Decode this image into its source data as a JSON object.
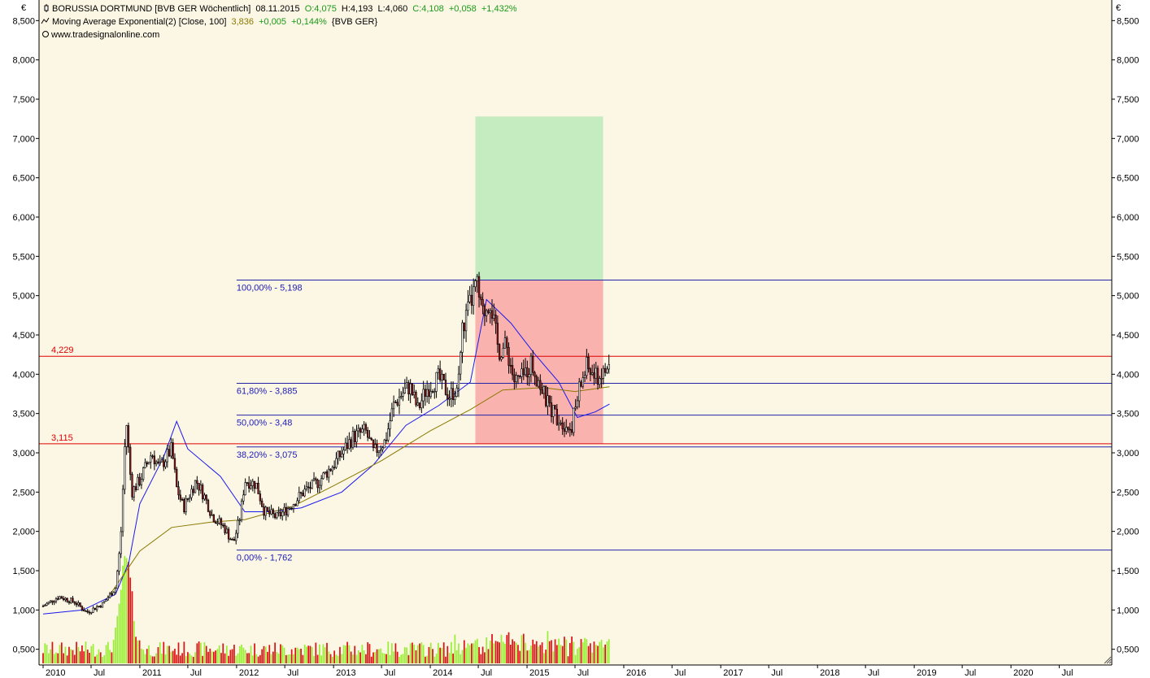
{
  "currency_symbol": "€",
  "legend": {
    "instrument_name": "BORUSSIA DORTMUND [BVB GER  Wöchentlich]",
    "instrument_date": "08.11.2015",
    "ohlc_open": "O:4,075",
    "ohlc_high": "H:4,193",
    "ohlc_low": "L:4,060",
    "ohlc_close": "C:4,108",
    "ohlc_change": "+0,058",
    "ohlc_change_pct": "+1,432%",
    "ma_name": "Moving Average Exponential(2) [Close, 100]",
    "ma_value": "3,836",
    "ma_change": "+0,005",
    "ma_change_pct": "+0,144%",
    "ma_source": "{BVB GER}",
    "website": "www.tradesignalonline.com"
  },
  "colors": {
    "background": "#ffffff",
    "plot_background": "#fcf6e4",
    "candle_up": "#ffffff",
    "candle_down": "#9b1c1c",
    "volume_up": "#99ee33",
    "volume_down": "#dd1111",
    "fib_line": "#2424a8",
    "horizontal_line": "#e00000",
    "channel_line": "#1a1aee",
    "ma_line": "#8a7a00",
    "target_box": "#c5ebc0",
    "loss_box": "#f9b2ae"
  },
  "chart_data": {
    "type": "candlestick",
    "ylim": [
      0.3,
      8.7
    ],
    "yticks": [
      0.5,
      1.0,
      1.5,
      2.0,
      2.5,
      3.0,
      3.5,
      4.0,
      4.5,
      5.0,
      5.5,
      6.0,
      6.5,
      7.0,
      7.5,
      8.0,
      8.5
    ],
    "ytick_labels": [
      "0,500",
      "1,000",
      "1,500",
      "2,000",
      "2,500",
      "3,000",
      "3,500",
      "4,000",
      "4,500",
      "5,000",
      "5,500",
      "6,000",
      "6,500",
      "7,000",
      "7,500",
      "8,000",
      "8,500"
    ],
    "xlim": [
      "2010-01-01",
      "2020-12-31"
    ],
    "xtick_labels": [
      {
        "date": "2010-01-01",
        "label": "2010"
      },
      {
        "date": "2010-07-01",
        "label": "Jul"
      },
      {
        "date": "2011-01-01",
        "label": "2011"
      },
      {
        "date": "2011-07-01",
        "label": "Jul"
      },
      {
        "date": "2012-01-01",
        "label": "2012"
      },
      {
        "date": "2012-07-01",
        "label": "Jul"
      },
      {
        "date": "2013-01-01",
        "label": "2013"
      },
      {
        "date": "2013-07-01",
        "label": "Jul"
      },
      {
        "date": "2014-01-01",
        "label": "2014"
      },
      {
        "date": "2014-07-01",
        "label": "Jul"
      },
      {
        "date": "2015-01-01",
        "label": "2015"
      },
      {
        "date": "2015-07-01",
        "label": "Jul"
      },
      {
        "date": "2016-01-01",
        "label": "2016"
      },
      {
        "date": "2016-07-01",
        "label": "Jul"
      },
      {
        "date": "2017-01-01",
        "label": "2017"
      },
      {
        "date": "2017-07-01",
        "label": "Jul"
      },
      {
        "date": "2018-01-01",
        "label": "2018"
      },
      {
        "date": "2018-07-01",
        "label": "Jul"
      },
      {
        "date": "2019-01-01",
        "label": "2019"
      },
      {
        "date": "2019-07-01",
        "label": "Jul"
      },
      {
        "date": "2020-01-01",
        "label": "2020"
      },
      {
        "date": "2020-07-01",
        "label": "Jul"
      }
    ],
    "price_path": [
      [
        "2010-01-01",
        1.05
      ],
      [
        "2010-03-01",
        1.17
      ],
      [
        "2010-05-01",
        1.1
      ],
      [
        "2010-06-15",
        0.97
      ],
      [
        "2010-08-15",
        1.08
      ],
      [
        "2010-10-01",
        1.28
      ],
      [
        "2010-10-20",
        1.85
      ],
      [
        "2010-11-10",
        3.45
      ],
      [
        "2010-12-01",
        2.5
      ],
      [
        "2011-01-01",
        2.65
      ],
      [
        "2011-02-15",
        3.0
      ],
      [
        "2011-03-15",
        2.8
      ],
      [
        "2011-05-01",
        3.05
      ],
      [
        "2011-05-20",
        2.55
      ],
      [
        "2011-06-15",
        2.3
      ],
      [
        "2011-08-01",
        2.65
      ],
      [
        "2011-09-01",
        2.45
      ],
      [
        "2011-10-01",
        2.2
      ],
      [
        "2011-11-15",
        2.05
      ],
      [
        "2011-12-20",
        1.85
      ],
      [
        "2012-01-15",
        2.2
      ],
      [
        "2012-02-01",
        2.65
      ],
      [
        "2012-03-15",
        2.6
      ],
      [
        "2012-04-15",
        2.25
      ],
      [
        "2012-06-01",
        2.18
      ],
      [
        "2012-07-15",
        2.3
      ],
      [
        "2012-09-15",
        2.52
      ],
      [
        "2012-11-01",
        2.62
      ],
      [
        "2013-01-01",
        2.85
      ],
      [
        "2013-03-15",
        3.2
      ],
      [
        "2013-05-01",
        3.28
      ],
      [
        "2013-06-01",
        3.0
      ],
      [
        "2013-07-15",
        3.15
      ],
      [
        "2013-08-15",
        3.6
      ],
      [
        "2013-09-15",
        3.75
      ],
      [
        "2013-10-15",
        3.85
      ],
      [
        "2013-11-15",
        3.55
      ],
      [
        "2013-12-15",
        3.8
      ],
      [
        "2014-02-01",
        3.95
      ],
      [
        "2014-03-15",
        3.72
      ],
      [
        "2014-04-15",
        3.85
      ],
      [
        "2014-05-01",
        4.55
      ],
      [
        "2014-06-01",
        4.9
      ],
      [
        "2014-06-25",
        5.15
      ],
      [
        "2014-07-15",
        4.75
      ],
      [
        "2014-08-15",
        4.95
      ],
      [
        "2014-09-15",
        4.3
      ],
      [
        "2014-10-15",
        4.35
      ],
      [
        "2014-11-15",
        3.9
      ],
      [
        "2014-12-15",
        3.95
      ],
      [
        "2015-01-15",
        4.15
      ],
      [
        "2015-02-15",
        3.9
      ],
      [
        "2015-03-15",
        3.65
      ],
      [
        "2015-04-15",
        3.5
      ],
      [
        "2015-05-15",
        3.4
      ],
      [
        "2015-06-15",
        3.3
      ],
      [
        "2015-07-01",
        3.55
      ],
      [
        "2015-07-20",
        3.85
      ],
      [
        "2015-08-15",
        4.1
      ],
      [
        "2015-09-15",
        3.95
      ],
      [
        "2015-10-15",
        4.0
      ],
      [
        "2015-11-08",
        4.11
      ]
    ],
    "ema_100": [
      [
        "2010-09-01",
        1.15
      ],
      [
        "2010-11-01",
        1.45
      ],
      [
        "2011-01-01",
        1.75
      ],
      [
        "2011-05-01",
        2.05
      ],
      [
        "2011-10-01",
        2.12
      ],
      [
        "2012-02-01",
        2.15
      ],
      [
        "2012-08-01",
        2.32
      ],
      [
        "2013-01-01",
        2.58
      ],
      [
        "2013-07-01",
        2.9
      ],
      [
        "2014-01-01",
        3.28
      ],
      [
        "2014-06-01",
        3.55
      ],
      [
        "2014-10-01",
        3.8
      ],
      [
        "2015-03-01",
        3.83
      ],
      [
        "2015-07-01",
        3.78
      ],
      [
        "2015-11-08",
        3.84
      ]
    ],
    "channel_line": [
      [
        "2010-01-01",
        0.95
      ],
      [
        "2010-06-01",
        1.0
      ],
      [
        "2010-10-01",
        1.2
      ],
      [
        "2010-11-20",
        1.6
      ],
      [
        "2011-01-01",
        2.35
      ],
      [
        "2011-04-01",
        2.95
      ],
      [
        "2011-05-20",
        3.4
      ],
      [
        "2011-07-01",
        3.05
      ],
      [
        "2011-11-01",
        2.7
      ],
      [
        "2012-02-01",
        2.25
      ],
      [
        "2012-05-01",
        2.25
      ],
      [
        "2012-09-01",
        2.3
      ],
      [
        "2013-02-01",
        2.5
      ],
      [
        "2013-06-01",
        2.85
      ],
      [
        "2013-10-01",
        3.35
      ],
      [
        "2014-02-01",
        3.6
      ],
      [
        "2014-06-01",
        3.9
      ],
      [
        "2014-08-01",
        4.95
      ],
      [
        "2014-11-01",
        4.65
      ],
      [
        "2015-02-01",
        4.25
      ],
      [
        "2015-05-01",
        3.9
      ],
      [
        "2015-07-10",
        3.45
      ],
      [
        "2015-09-15",
        3.52
      ],
      [
        "2015-11-08",
        3.62
      ]
    ],
    "fibonacci_levels": [
      {
        "level": 5.198,
        "label": "100,00% - 5,198"
      },
      {
        "level": 3.885,
        "label": "61,80% - 3,885"
      },
      {
        "level": 3.48,
        "label": "50,00% - 3,48"
      },
      {
        "level": 3.075,
        "label": "38,20% - 3,075"
      },
      {
        "level": 1.762,
        "label": "0,00% - 1,762"
      }
    ],
    "fibonacci_start_date": "2012-01-01",
    "horizontal_lines": [
      {
        "level": 4.229,
        "label": "4,229"
      },
      {
        "level": 3.115,
        "label": "3,115"
      }
    ],
    "target_box": {
      "x_start": "2014-06-20",
      "x_end": "2015-10-15",
      "y_low": 5.198,
      "y_high": 7.28
    },
    "loss_box": {
      "x_start": "2014-06-20",
      "x_end": "2015-10-15",
      "y_low": 3.115,
      "y_high": 5.198
    },
    "volume_max": 0.88
  }
}
